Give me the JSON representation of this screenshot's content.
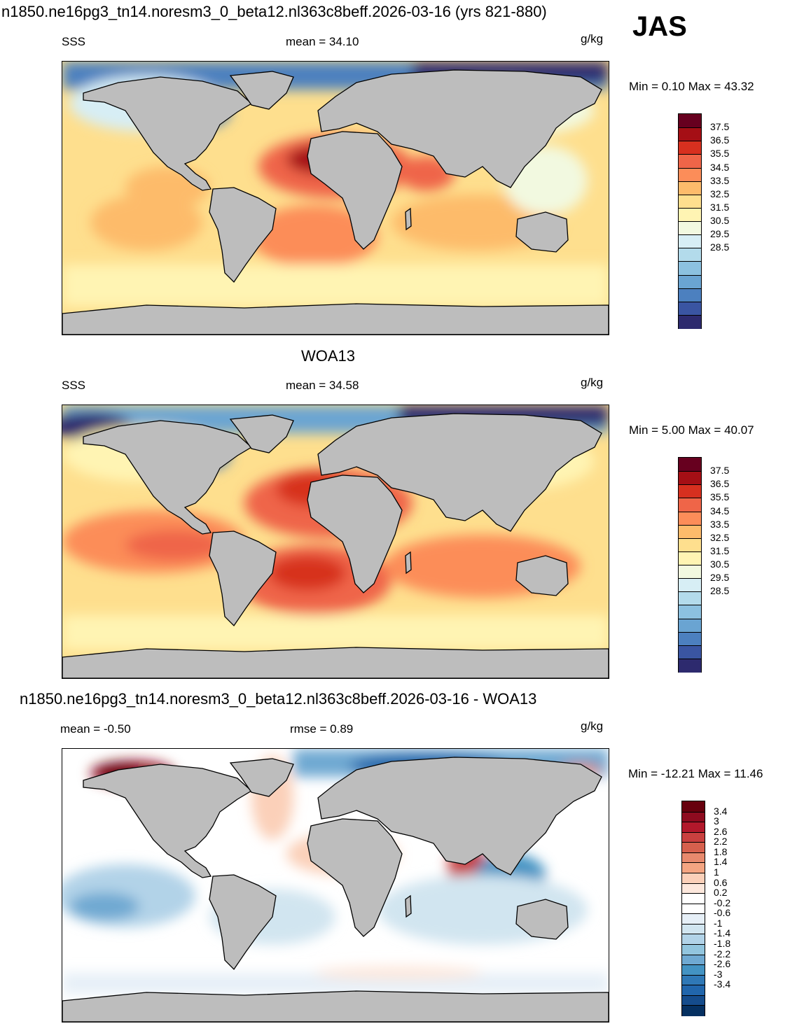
{
  "header": {
    "case_title": "n1850.ne16pg3_tn14.noresm3_0_beta12.nl363c8beff.2026-03-16 (yrs 821-880)",
    "season": "JAS"
  },
  "panels": [
    {
      "variable": "SSS",
      "stat_text": "mean =  34.10",
      "units": "g/kg",
      "minmax": "Min =   0.10 Max =  43.32",
      "colorbar_ticks": [
        "37.5",
        "36.5",
        "35.5",
        "34.5",
        "33.5",
        "32.5",
        "31.5",
        "30.5",
        "29.5",
        "28.5"
      ]
    },
    {
      "title": "WOA13",
      "variable": "SSS",
      "stat_text": "mean =  34.58",
      "units": "g/kg",
      "minmax": "Min =   5.00 Max =  40.07",
      "colorbar_ticks": [
        "37.5",
        "36.5",
        "35.5",
        "34.5",
        "33.5",
        "32.5",
        "31.5",
        "30.5",
        "29.5",
        "28.5"
      ]
    },
    {
      "title": "n1850.ne16pg3_tn14.noresm3_0_beta12.nl363c8beff.2026-03-16 - WOA13",
      "mean_text": "mean =  -0.50",
      "rmse_text": "rmse =   0.89",
      "units": "g/kg",
      "minmax": "Min = -12.21 Max =  11.46",
      "colorbar_ticks": [
        "3.4",
        "3",
        "2.6",
        "2.2",
        "1.8",
        "1.4",
        "1",
        "0.6",
        "0.2",
        "-0.2",
        "-0.6",
        "-1",
        "-1.4",
        "-1.8",
        "-2.2",
        "-2.6",
        "-3",
        "-3.4"
      ]
    }
  ],
  "colors": {
    "land": "#bdbdbd",
    "salinity_scale": [
      "#67001f",
      "#a50f15",
      "#d7301f",
      "#ef6548",
      "#fc8d59",
      "#fdbb6b",
      "#fedf8e",
      "#fff4b3",
      "#f2f9e0",
      "#d7eef5",
      "#b3dbeb",
      "#8cc1e0",
      "#6aa4d2",
      "#4c80bf",
      "#3a55a2",
      "#2d2a6e"
    ],
    "diff_scale": [
      "#67000d",
      "#8e0b1f",
      "#b2182b",
      "#c9403f",
      "#d6604d",
      "#e7896d",
      "#f4a582",
      "#fbd0b9",
      "#fde8dd",
      "#ffffff",
      "#ffffff",
      "#e6eff7",
      "#d1e5f0",
      "#b2d3e8",
      "#92c5de",
      "#6fa9d2",
      "#4393c3",
      "#2f78b6",
      "#2166ac",
      "#154c8c",
      "#053061"
    ]
  }
}
